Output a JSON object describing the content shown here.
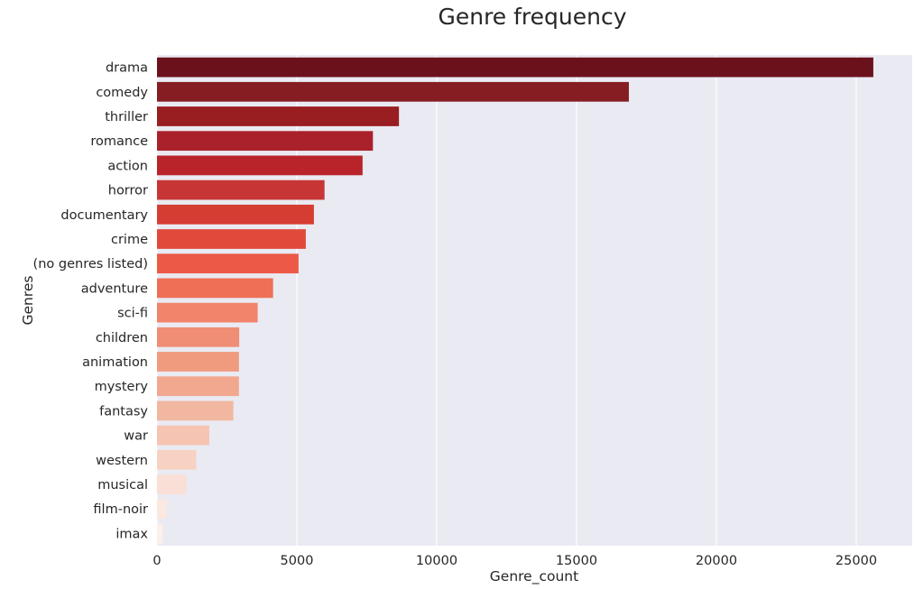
{
  "chart_data": {
    "type": "bar",
    "orientation": "horizontal",
    "title": "Genre frequency",
    "xlabel": "Genre_count",
    "ylabel": "Genres",
    "xlim": [
      0,
      27000
    ],
    "xticks": [
      0,
      5000,
      10000,
      15000,
      20000,
      25000
    ],
    "grid": true,
    "legend": "none",
    "colormap": "Reds (dark to light)",
    "categories": [
      "drama",
      "comedy",
      "thriller",
      "romance",
      "action",
      "horror",
      "documentary",
      "crime",
      "(no genres listed)",
      "adventure",
      "sci-fi",
      "children",
      "animation",
      "mystery",
      "fantasy",
      "war",
      "western",
      "musical",
      "film-noir",
      "imax"
    ],
    "values": [
      25610,
      16870,
      8650,
      7720,
      7350,
      5990,
      5610,
      5320,
      5060,
      4150,
      3600,
      2940,
      2930,
      2930,
      2730,
      1870,
      1400,
      1050,
      350,
      200
    ],
    "colors": [
      "#6b111c",
      "#851d22",
      "#991e21",
      "#a9212a",
      "#b8242a",
      "#c73535",
      "#d63d32",
      "#e14a3b",
      "#ec5a47",
      "#ef6f56",
      "#f1846a",
      "#ef8e74",
      "#f09a7e",
      "#f1a88f",
      "#f2b7a1",
      "#f6c4b2",
      "#f7d2c3",
      "#f9dfd5",
      "#fbe8e0",
      "#fdf0ea"
    ]
  }
}
